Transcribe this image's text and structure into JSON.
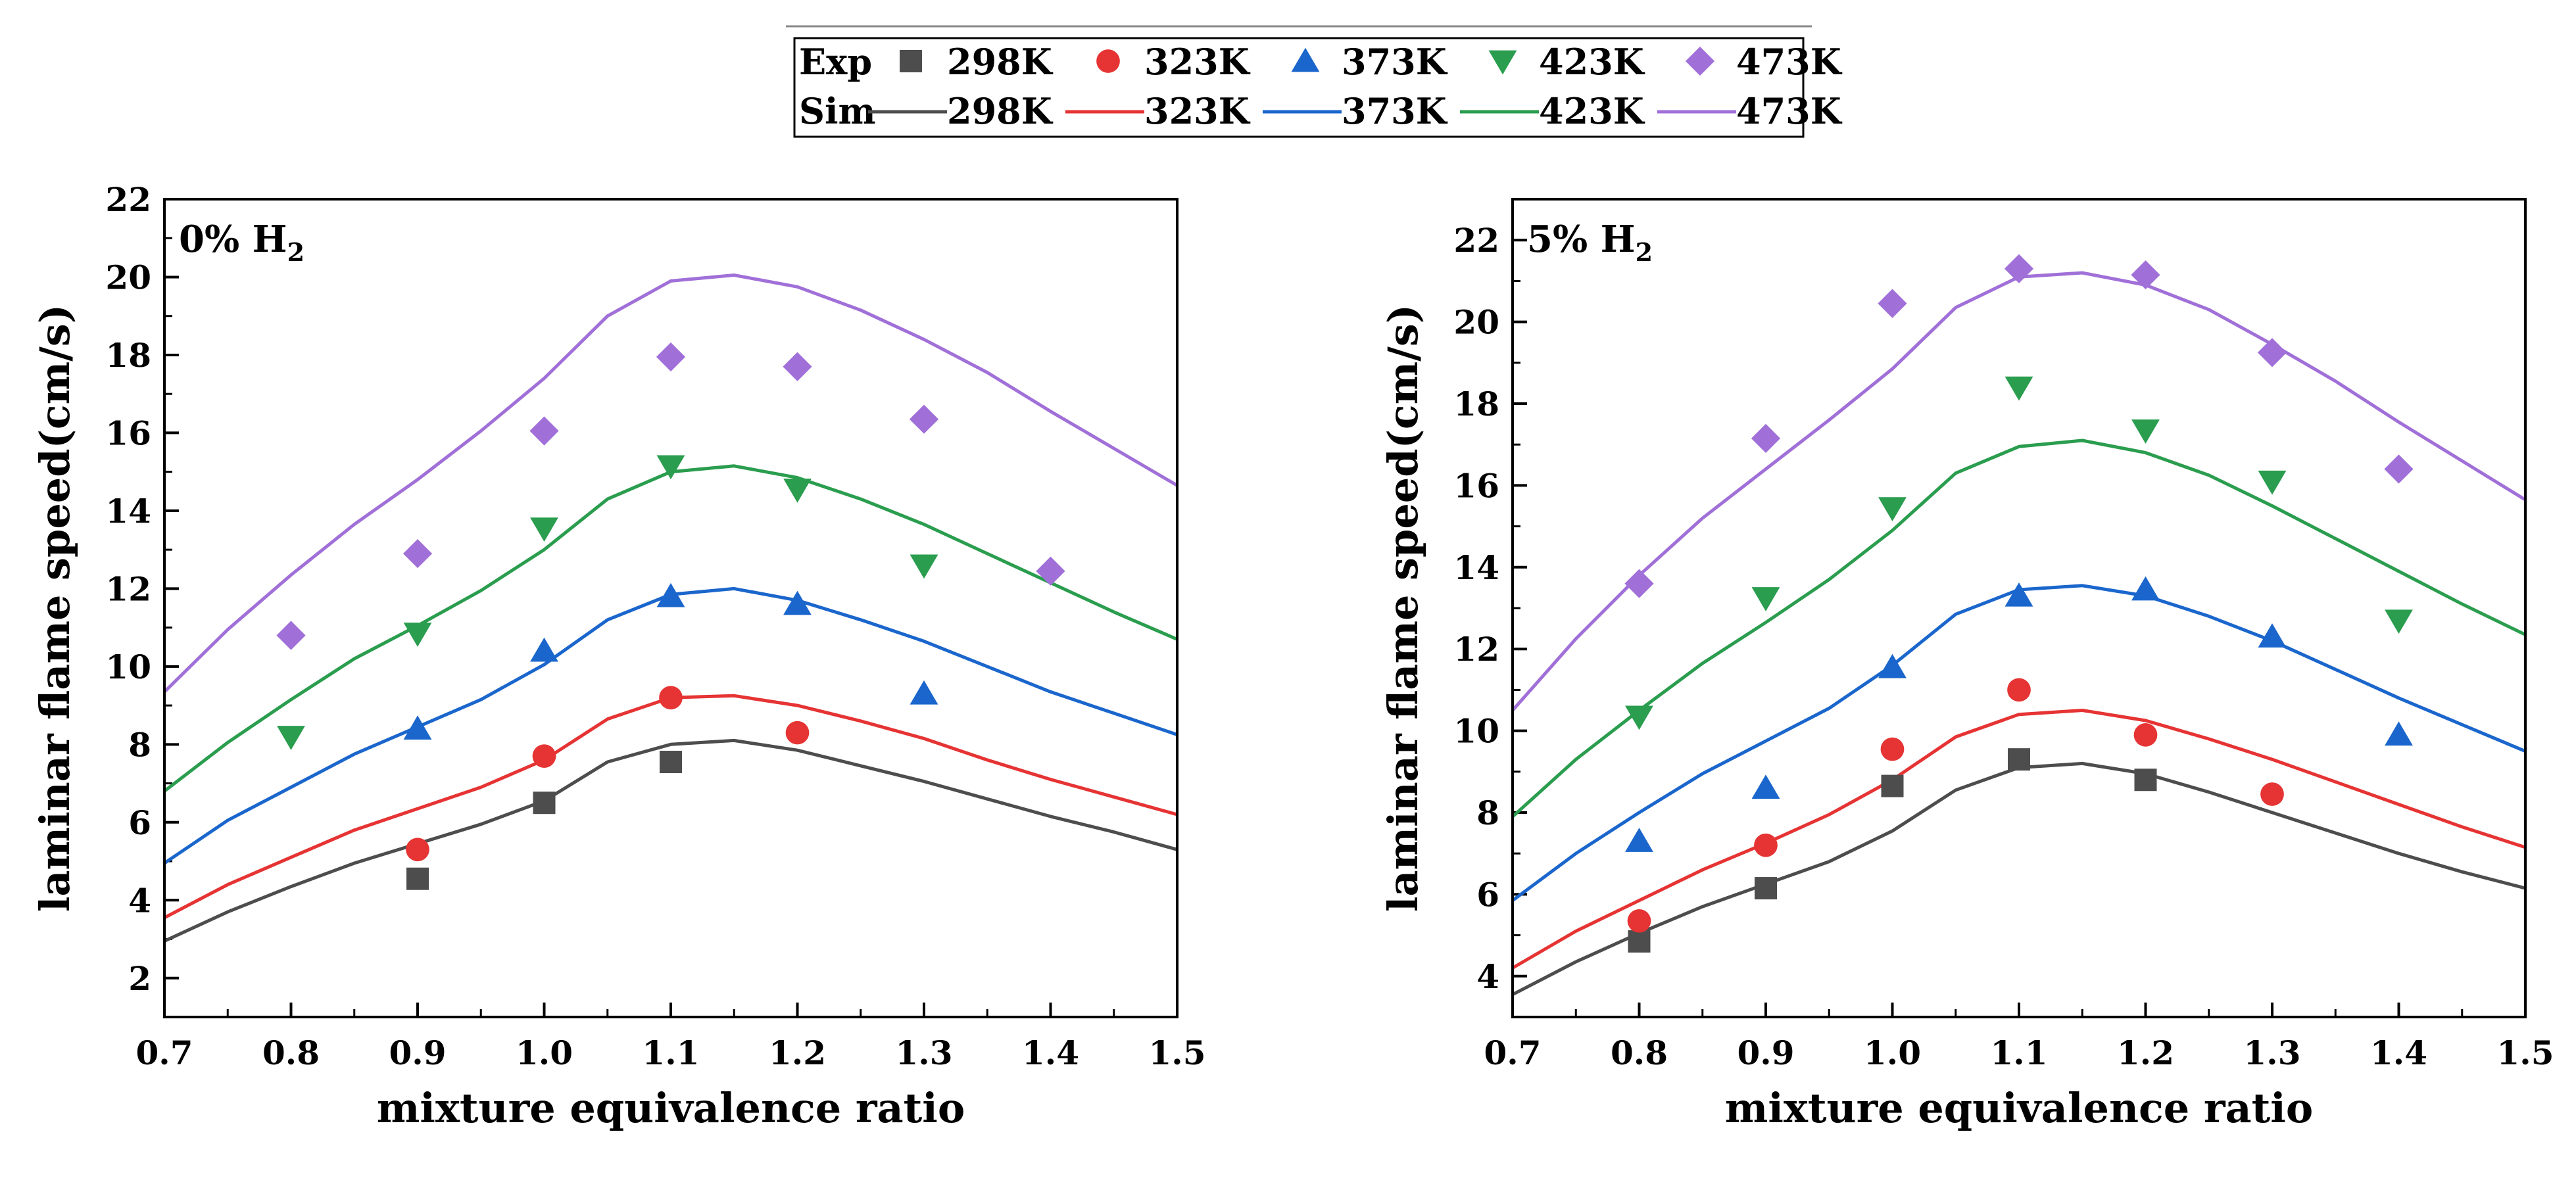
{
  "legend": {
    "exp_label": "Exp",
    "sim_label": "Sim",
    "temperatures": [
      "298K",
      "323K",
      "373K",
      "423K",
      "473K"
    ],
    "colors": [
      "#4d4d4d",
      "#e63333",
      "#1a66cc",
      "#2a9d4e",
      "#a070d8"
    ],
    "markers": [
      "square",
      "circle",
      "triangle-up",
      "triangle-down",
      "diamond"
    ]
  },
  "chart_data": [
    {
      "type": "line",
      "title": "0% H",
      "title_sub": "2",
      "xlabel": "mixture equivalence ratio",
      "ylabel": "laminar flame speed(cm/s)",
      "xlim": [
        0.7,
        1.5
      ],
      "ylim": [
        1,
        22
      ],
      "xticks": [
        0.7,
        0.8,
        0.9,
        1.0,
        1.1,
        1.2,
        1.3,
        1.4,
        1.5
      ],
      "xtick_labels": [
        "0.7",
        "0.8",
        "0.9",
        "1.0",
        "1.1",
        "1.2",
        "1.3",
        "1.4",
        "1.5"
      ],
      "yticks": [
        2,
        4,
        6,
        8,
        10,
        12,
        14,
        16,
        18,
        20,
        22
      ],
      "ytick_labels": [
        "2",
        "4",
        "6",
        "8",
        "10",
        "12",
        "14",
        "16",
        "18",
        "20",
        "22"
      ],
      "sim_x": [
        0.7,
        0.75,
        0.8,
        0.85,
        0.9,
        0.95,
        1.0,
        1.05,
        1.1,
        1.15,
        1.2,
        1.25,
        1.3,
        1.35,
        1.4,
        1.45,
        1.5
      ],
      "sim": [
        {
          "name": "298K",
          "values": [
            2.95,
            3.7,
            4.35,
            4.95,
            5.45,
            5.95,
            6.55,
            7.55,
            8.0,
            8.1,
            7.85,
            7.45,
            7.05,
            6.6,
            6.15,
            5.75,
            5.3
          ]
        },
        {
          "name": "323K",
          "values": [
            3.55,
            4.4,
            5.1,
            5.8,
            6.35,
            6.9,
            7.6,
            8.65,
            9.2,
            9.25,
            9.0,
            8.6,
            8.15,
            7.6,
            7.1,
            6.65,
            6.2
          ]
        },
        {
          "name": "373K",
          "values": [
            4.95,
            6.05,
            6.9,
            7.75,
            8.45,
            9.15,
            10.05,
            11.2,
            11.85,
            12.0,
            11.7,
            11.2,
            10.65,
            10.0,
            9.35,
            8.8,
            8.25
          ]
        },
        {
          "name": "423K",
          "values": [
            6.8,
            8.05,
            9.15,
            10.2,
            11.05,
            11.95,
            13.0,
            14.3,
            15.0,
            15.15,
            14.85,
            14.3,
            13.65,
            12.9,
            12.15,
            11.4,
            10.7
          ]
        },
        {
          "name": "473K",
          "values": [
            9.35,
            10.95,
            12.35,
            13.65,
            14.8,
            16.05,
            17.4,
            19.0,
            19.9,
            20.05,
            19.75,
            19.15,
            18.4,
            17.55,
            16.55,
            15.6,
            14.65
          ]
        }
      ],
      "exp": [
        {
          "name": "298K",
          "x": [
            0.9,
            1.0,
            1.1
          ],
          "values": [
            4.55,
            6.5,
            7.55
          ]
        },
        {
          "name": "323K",
          "x": [
            0.9,
            1.0,
            1.1,
            1.2
          ],
          "values": [
            5.3,
            7.7,
            9.2,
            8.3
          ]
        },
        {
          "name": "373K",
          "x": [
            0.9,
            1.0,
            1.1,
            1.2,
            1.3
          ],
          "values": [
            8.4,
            10.4,
            11.8,
            11.6,
            9.3
          ]
        },
        {
          "name": "423K",
          "x": [
            0.8,
            0.9,
            1.0,
            1.1,
            1.2,
            1.3
          ],
          "values": [
            8.2,
            10.85,
            13.55,
            15.15,
            14.55,
            12.6
          ]
        },
        {
          "name": "473K",
          "x": [
            0.8,
            0.9,
            1.0,
            1.1,
            1.2,
            1.3,
            1.4
          ],
          "values": [
            10.8,
            12.9,
            16.05,
            17.95,
            17.7,
            16.35,
            12.45
          ]
        }
      ]
    },
    {
      "type": "line",
      "title": "5% H",
      "title_sub": "2",
      "xlabel": "mixture equivalence ratio",
      "ylabel": "laminar flame speed(cm/s)",
      "xlim": [
        0.7,
        1.5
      ],
      "ylim": [
        3,
        23
      ],
      "xticks": [
        0.7,
        0.8,
        0.9,
        1.0,
        1.1,
        1.2,
        1.3,
        1.4,
        1.5
      ],
      "xtick_labels": [
        "0.7",
        "0.8",
        "0.9",
        "1.0",
        "1.1",
        "1.2",
        "1.3",
        "1.4",
        "1.5"
      ],
      "yticks": [
        4,
        6,
        8,
        10,
        12,
        14,
        16,
        18,
        20,
        22
      ],
      "ytick_labels": [
        "4",
        "6",
        "8",
        "10",
        "12",
        "14",
        "16",
        "18",
        "20",
        "22"
      ],
      "sim_x": [
        0.7,
        0.75,
        0.8,
        0.85,
        0.9,
        0.95,
        1.0,
        1.05,
        1.1,
        1.15,
        1.2,
        1.25,
        1.3,
        1.35,
        1.4,
        1.45,
        1.5
      ],
      "sim": [
        {
          "name": "298K",
          "values": [
            3.55,
            4.35,
            5.05,
            5.7,
            6.25,
            6.8,
            7.55,
            8.55,
            9.1,
            9.2,
            8.95,
            8.5,
            8.0,
            7.5,
            7.0,
            6.55,
            6.15
          ]
        },
        {
          "name": "323K",
          "values": [
            4.2,
            5.1,
            5.85,
            6.6,
            7.25,
            7.95,
            8.8,
            9.85,
            10.4,
            10.5,
            10.25,
            9.8,
            9.3,
            8.75,
            8.2,
            7.65,
            7.15
          ]
        },
        {
          "name": "373K",
          "values": [
            5.85,
            7.0,
            8.0,
            8.95,
            9.75,
            10.55,
            11.6,
            12.85,
            13.45,
            13.55,
            13.3,
            12.8,
            12.2,
            11.5,
            10.8,
            10.15,
            9.5
          ]
        },
        {
          "name": "423K",
          "values": [
            7.9,
            9.3,
            10.5,
            11.65,
            12.65,
            13.7,
            14.9,
            16.3,
            16.95,
            17.1,
            16.8,
            16.25,
            15.5,
            14.7,
            13.9,
            13.1,
            12.35
          ]
        },
        {
          "name": "473K",
          "values": [
            10.5,
            12.25,
            13.8,
            15.2,
            16.4,
            17.6,
            18.85,
            20.35,
            21.1,
            21.2,
            20.9,
            20.3,
            19.45,
            18.55,
            17.55,
            16.6,
            15.65
          ]
        }
      ],
      "exp": [
        {
          "name": "298K",
          "x": [
            0.8,
            0.9,
            1.0,
            1.1,
            1.2
          ],
          "values": [
            4.85,
            6.15,
            8.65,
            9.3,
            8.8
          ]
        },
        {
          "name": "323K",
          "x": [
            0.8,
            0.9,
            1.0,
            1.1,
            1.2,
            1.3
          ],
          "values": [
            5.35,
            7.2,
            9.55,
            11.0,
            9.9,
            8.45
          ]
        },
        {
          "name": "373K",
          "x": [
            0.8,
            0.9,
            1.0,
            1.1,
            1.2,
            1.3,
            1.4
          ],
          "values": [
            7.3,
            8.6,
            11.55,
            13.3,
            13.45,
            12.3,
            9.9
          ]
        },
        {
          "name": "423K",
          "x": [
            0.8,
            0.9,
            1.0,
            1.1,
            1.2,
            1.3,
            1.4
          ],
          "values": [
            10.35,
            13.25,
            15.45,
            18.4,
            17.35,
            16.1,
            12.7
          ]
        },
        {
          "name": "473K",
          "x": [
            0.8,
            0.9,
            1.0,
            1.1,
            1.2,
            1.3,
            1.4
          ],
          "values": [
            13.6,
            17.15,
            20.45,
            21.3,
            21.15,
            19.25,
            16.4
          ]
        }
      ]
    }
  ]
}
